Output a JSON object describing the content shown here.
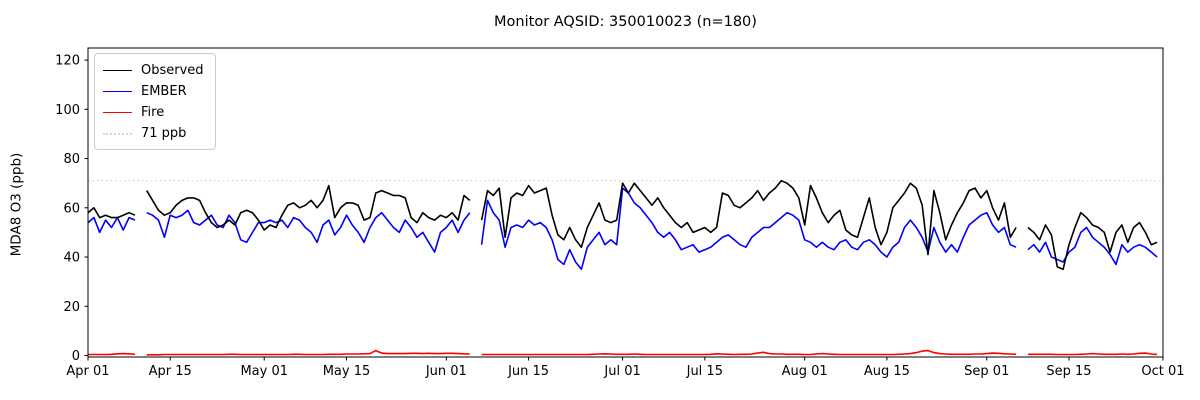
{
  "figure": {
    "title": "Monitor AQSID: 350010023 (n=180)"
  },
  "chart_data": {
    "type": "line",
    "title": "Monitor AQSID: 350010023 (n=180)",
    "xlabel": "",
    "ylabel": "MDA8 O3 (ppb)",
    "ylim": [
      0,
      125
    ],
    "yticks": [
      0,
      20,
      40,
      60,
      80,
      100,
      120
    ],
    "grid": false,
    "legend_position": "upper left",
    "x_axis": {
      "unit": "day index from Apr 01",
      "n_days": 183,
      "note": "daily MDA8 values Apr 01 - Sep 30; 3 missing days (gaps) give n=180",
      "ticks": [
        {
          "label": "Apr 01",
          "day": 0
        },
        {
          "label": "Apr 15",
          "day": 14
        },
        {
          "label": "May 01",
          "day": 30
        },
        {
          "label": "May 15",
          "day": 44
        },
        {
          "label": "Jun 01",
          "day": 61
        },
        {
          "label": "Jun 15",
          "day": 75
        },
        {
          "label": "Jul 01",
          "day": 91
        },
        {
          "label": "Jul 15",
          "day": 105
        },
        {
          "label": "Aug 01",
          "day": 122
        },
        {
          "label": "Aug 15",
          "day": 136
        },
        {
          "label": "Sep 01",
          "day": 153
        },
        {
          "label": "Sep 15",
          "day": 167
        },
        {
          "label": "Oct 01",
          "day": 183
        }
      ]
    },
    "threshold": {
      "label": "71 ppb",
      "value": 71,
      "color": "#d6d6d6",
      "style": "dotted"
    },
    "series": [
      {
        "name": "Observed",
        "color": "#000000",
        "values": [
          58,
          60,
          56,
          57,
          56,
          56,
          57,
          58,
          57,
          null,
          67,
          63,
          59,
          57,
          58,
          61,
          63,
          64,
          64,
          63,
          58,
          54,
          52,
          53,
          55,
          53,
          58,
          59,
          58,
          55,
          51,
          53,
          52,
          57,
          61,
          62,
          60,
          61,
          63,
          60,
          63,
          69,
          56,
          60,
          62,
          62,
          61,
          55,
          56,
          66,
          67,
          66,
          65,
          65,
          64,
          56,
          54,
          58,
          56,
          55,
          57,
          56,
          58,
          55,
          65,
          63,
          null,
          55,
          67,
          65,
          68,
          48,
          64,
          66,
          65,
          69,
          66,
          67,
          68,
          57,
          49,
          47,
          52,
          47,
          44,
          52,
          57,
          62,
          55,
          54,
          55,
          70,
          66,
          70,
          67,
          64,
          61,
          64,
          60,
          57,
          54,
          52,
          54,
          50,
          51,
          52,
          50,
          52,
          66,
          65,
          61,
          60,
          62,
          64,
          67,
          63,
          66,
          68,
          71,
          70,
          68,
          64,
          53,
          69,
          64,
          58,
          54,
          57,
          59,
          51,
          49,
          48,
          56,
          64,
          52,
          45,
          50,
          60,
          63,
          66,
          70,
          68,
          61,
          41,
          67,
          58,
          47,
          53,
          58,
          62,
          67,
          68,
          64,
          67,
          60,
          55,
          62,
          48,
          52,
          null,
          52,
          50,
          47,
          53,
          49,
          36,
          35,
          45,
          52,
          58,
          56,
          53,
          52,
          50,
          42,
          50,
          53,
          46,
          52,
          54,
          50,
          45,
          46
        ]
      },
      {
        "name": "EMBER",
        "color": "#0000ff",
        "values": [
          54,
          56,
          50,
          55,
          52,
          56,
          51,
          56,
          55,
          null,
          58,
          57,
          55,
          48,
          57,
          56,
          57,
          59,
          54,
          53,
          55,
          57,
          53,
          52,
          57,
          54,
          47,
          46,
          50,
          54,
          54,
          55,
          54,
          55,
          52,
          56,
          55,
          52,
          50,
          46,
          53,
          55,
          49,
          52,
          57,
          53,
          50,
          46,
          52,
          56,
          58,
          55,
          52,
          50,
          55,
          52,
          48,
          50,
          46,
          42,
          50,
          52,
          55,
          50,
          55,
          58,
          null,
          45,
          63,
          58,
          55,
          44,
          52,
          53,
          52,
          55,
          53,
          54,
          52,
          47,
          39,
          37,
          43,
          38,
          35,
          44,
          47,
          50,
          45,
          47,
          45,
          68,
          66,
          62,
          60,
          57,
          54,
          50,
          48,
          50,
          47,
          43,
          44,
          45,
          42,
          43,
          44,
          46,
          48,
          49,
          47,
          45,
          44,
          48,
          50,
          52,
          52,
          54,
          56,
          58,
          57,
          55,
          47,
          46,
          44,
          46,
          44,
          43,
          46,
          47,
          44,
          43,
          46,
          47,
          45,
          42,
          40,
          44,
          46,
          52,
          55,
          52,
          48,
          42,
          52,
          46,
          42,
          45,
          42,
          48,
          53,
          55,
          57,
          58,
          53,
          50,
          52,
          45,
          44,
          null,
          43,
          45,
          42,
          46,
          40,
          39,
          38,
          42,
          44,
          50,
          52,
          48,
          46,
          44,
          41,
          37,
          45,
          42,
          44,
          45,
          44,
          42,
          40
        ]
      },
      {
        "name": "Fire",
        "color": "#ff0000",
        "values": [
          0.4,
          0.4,
          0.4,
          0.4,
          0.5,
          0.7,
          0.8,
          0.7,
          0.5,
          null,
          0.3,
          0.3,
          0.3,
          0.4,
          0.4,
          0.4,
          0.4,
          0.4,
          0.4,
          0.4,
          0.4,
          0.4,
          0.4,
          0.4,
          0.5,
          0.5,
          0.4,
          0.4,
          0.4,
          0.4,
          0.4,
          0.4,
          0.4,
          0.4,
          0.4,
          0.5,
          0.5,
          0.4,
          0.4,
          0.4,
          0.4,
          0.5,
          0.5,
          0.5,
          0.6,
          0.6,
          0.6,
          0.7,
          0.8,
          2.0,
          1.0,
          0.8,
          0.8,
          0.8,
          0.8,
          0.9,
          0.9,
          0.8,
          0.9,
          0.8,
          0.8,
          0.9,
          0.9,
          0.8,
          0.7,
          0.6,
          null,
          0.4,
          0.4,
          0.4,
          0.4,
          0.4,
          0.4,
          0.4,
          0.4,
          0.4,
          0.4,
          0.4,
          0.4,
          0.4,
          0.4,
          0.4,
          0.4,
          0.4,
          0.4,
          0.4,
          0.5,
          0.6,
          0.7,
          0.6,
          0.5,
          0.5,
          0.5,
          0.6,
          0.5,
          0.4,
          0.4,
          0.4,
          0.4,
          0.4,
          0.4,
          0.4,
          0.4,
          0.4,
          0.4,
          0.4,
          0.5,
          0.7,
          0.6,
          0.5,
          0.4,
          0.5,
          0.5,
          0.6,
          1.0,
          1.3,
          0.8,
          0.6,
          0.6,
          0.5,
          0.5,
          0.5,
          0.4,
          0.4,
          0.6,
          0.8,
          0.6,
          0.5,
          0.4,
          0.4,
          0.4,
          0.4,
          0.4,
          0.4,
          0.4,
          0.4,
          0.4,
          0.4,
          0.5,
          0.6,
          0.8,
          1.2,
          1.8,
          2.0,
          1.2,
          0.8,
          0.6,
          0.5,
          0.5,
          0.5,
          0.5,
          0.6,
          0.6,
          0.8,
          1.0,
          0.9,
          0.7,
          0.6,
          0.5,
          null,
          0.5,
          0.5,
          0.5,
          0.5,
          0.5,
          0.4,
          0.4,
          0.4,
          0.4,
          0.5,
          0.6,
          0.8,
          0.6,
          0.5,
          0.5,
          0.5,
          0.6,
          0.5,
          0.6,
          0.9,
          1.0,
          0.6,
          0.4
        ]
      }
    ]
  }
}
